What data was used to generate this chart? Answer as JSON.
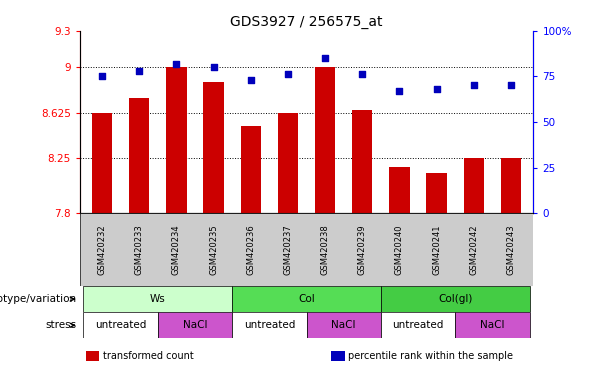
{
  "title": "GDS3927 / 256575_at",
  "samples": [
    "GSM420232",
    "GSM420233",
    "GSM420234",
    "GSM420235",
    "GSM420236",
    "GSM420237",
    "GSM420238",
    "GSM420239",
    "GSM420240",
    "GSM420241",
    "GSM420242",
    "GSM420243"
  ],
  "bar_values": [
    8.625,
    8.75,
    9.0,
    8.875,
    8.52,
    8.62,
    9.0,
    8.65,
    8.18,
    8.13,
    8.25,
    8.25
  ],
  "dot_values": [
    75,
    78,
    82,
    80,
    73,
    76,
    85,
    76,
    67,
    68,
    70,
    70
  ],
  "ylim": [
    7.8,
    9.3
  ],
  "y2lim": [
    0,
    100
  ],
  "yticks": [
    7.8,
    8.25,
    8.625,
    9.0,
    9.3
  ],
  "ytick_labels": [
    "7.8",
    "8.25",
    "8.625",
    "9",
    "9.3"
  ],
  "y2ticks": [
    0,
    25,
    50,
    75,
    100
  ],
  "y2tick_labels": [
    "0",
    "25",
    "50",
    "75",
    "100%"
  ],
  "hlines": [
    9.0,
    8.625,
    8.25
  ],
  "bar_color": "#cc0000",
  "dot_color": "#0000bb",
  "bar_width": 0.55,
  "genotype_groups": [
    {
      "label": "Ws",
      "start": 0,
      "end": 4,
      "color": "#ccffcc"
    },
    {
      "label": "Col",
      "start": 4,
      "end": 8,
      "color": "#55dd55"
    },
    {
      "label": "Col(gl)",
      "start": 8,
      "end": 12,
      "color": "#44cc44"
    }
  ],
  "stress_groups": [
    {
      "label": "untreated",
      "start": 0,
      "end": 2,
      "color": "#ffffff"
    },
    {
      "label": "NaCl",
      "start": 2,
      "end": 4,
      "color": "#cc55cc"
    },
    {
      "label": "untreated",
      "start": 4,
      "end": 6,
      "color": "#ffffff"
    },
    {
      "label": "NaCl",
      "start": 6,
      "end": 8,
      "color": "#cc55cc"
    },
    {
      "label": "untreated",
      "start": 8,
      "end": 10,
      "color": "#ffffff"
    },
    {
      "label": "NaCl",
      "start": 10,
      "end": 12,
      "color": "#cc55cc"
    }
  ],
  "legend_items": [
    {
      "label": "transformed count",
      "color": "#cc0000"
    },
    {
      "label": "percentile rank within the sample",
      "color": "#0000bb"
    }
  ],
  "genotype_label": "genotype/variation",
  "stress_label": "stress",
  "title_fontsize": 10,
  "tick_fontsize": 7.5,
  "label_fontsize": 7.5,
  "sample_fontsize": 6,
  "annot_fontsize": 7.5
}
